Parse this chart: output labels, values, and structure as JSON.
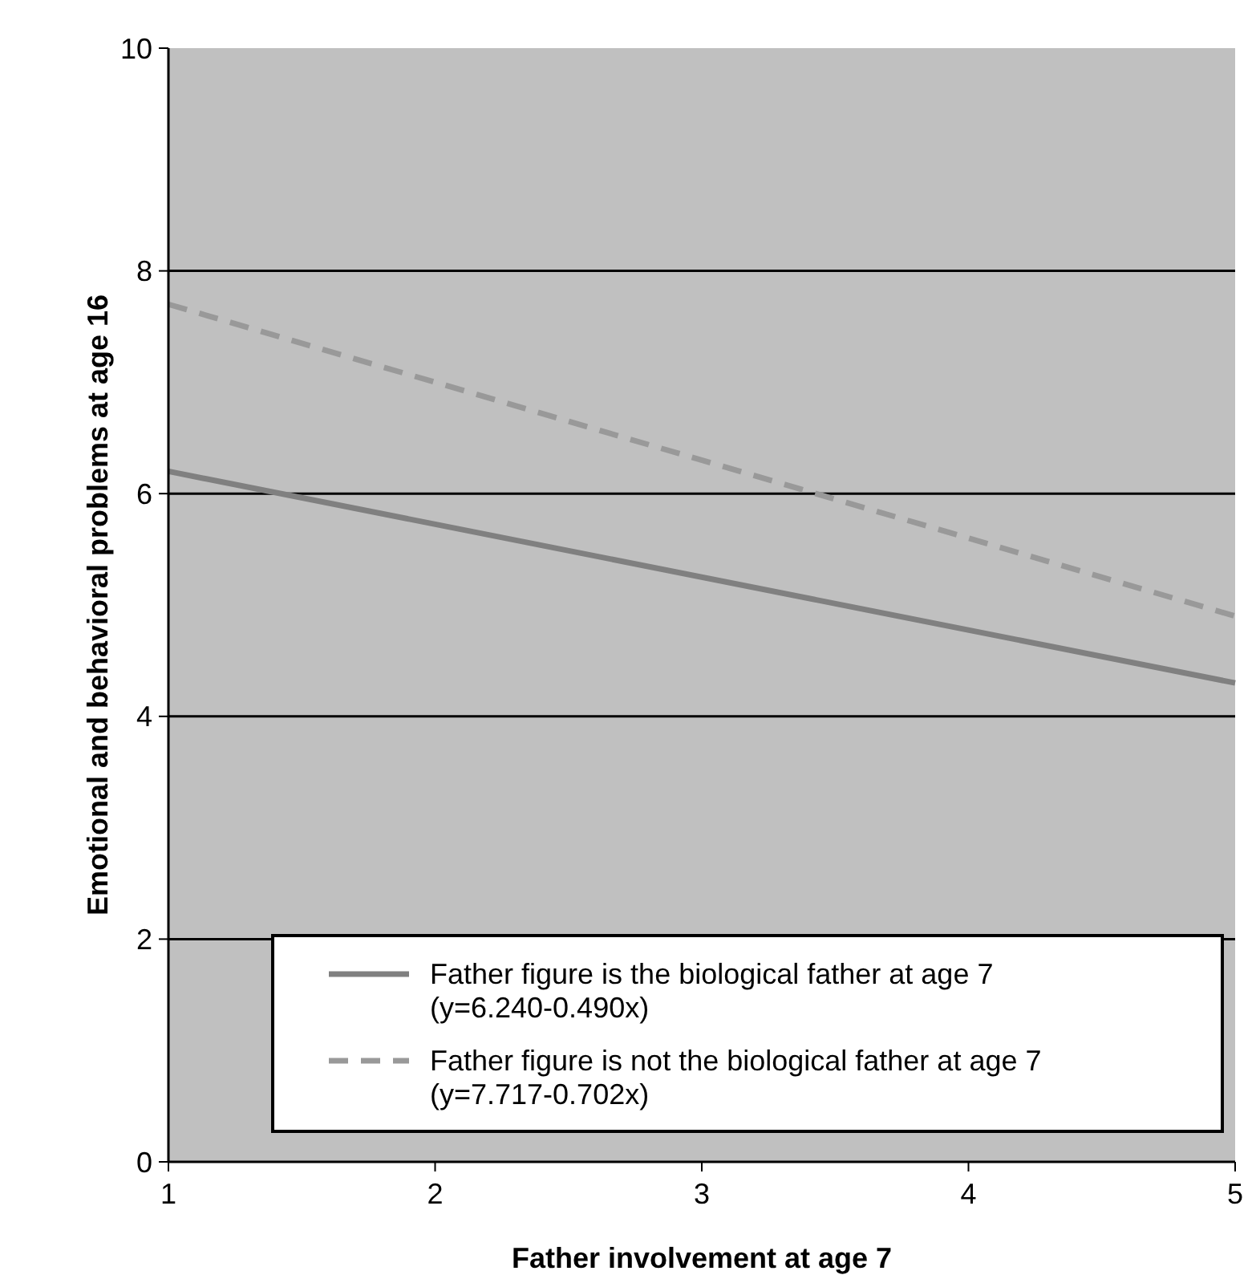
{
  "chart_data": {
    "type": "line",
    "xlabel": "Father involvement at age 7",
    "ylabel": "Emotional and behavioral problems at age 16",
    "x": [
      1,
      5
    ],
    "series": [
      {
        "name": "Father figure is the biological father at age 7 (y=6.240-0.490x)",
        "color": "#808080",
        "values": [
          6.2,
          4.3
        ],
        "line_style": "solid"
      },
      {
        "name": "Father figure is not the biological father at age 7 (y=7.717-0.702x)",
        "color": "#999999",
        "values": [
          7.7,
          4.9
        ],
        "line_style": "dashed"
      }
    ],
    "xlim": [
      1,
      5
    ],
    "xticks": [
      1,
      2,
      3,
      4,
      5
    ],
    "ylim": [
      0,
      10
    ],
    "yticks": [
      0,
      2,
      4,
      6,
      8,
      10
    ],
    "grid": "y",
    "legend": "bottom right",
    "marker": "none"
  }
}
